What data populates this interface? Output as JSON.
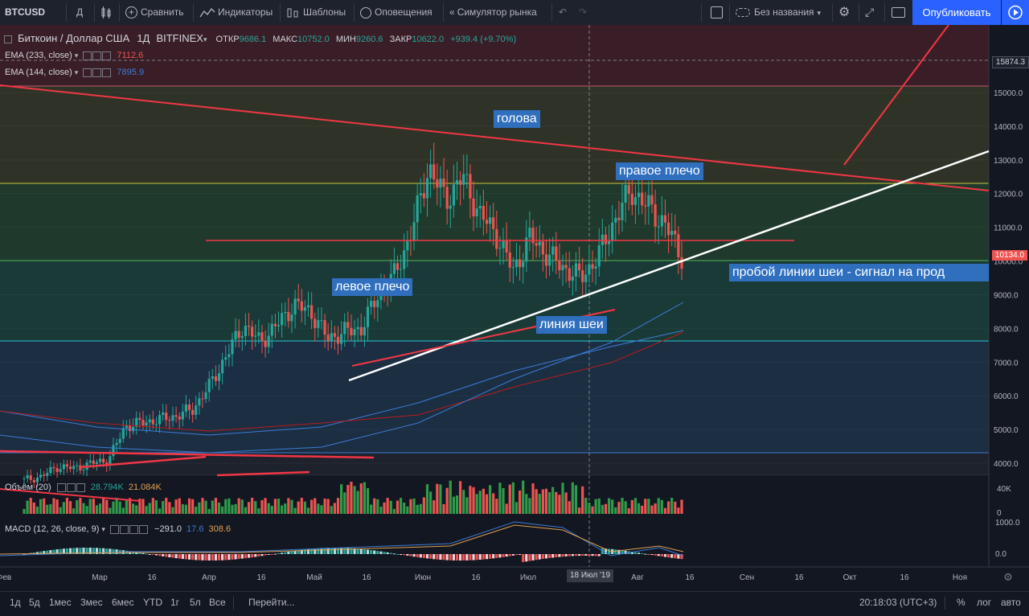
{
  "toolbar": {
    "symbol": "BTCUSD",
    "interval": "Д",
    "compare": "Сравнить",
    "indicators": "Индикаторы",
    "templates": "Шаблоны",
    "alerts": "Оповещения",
    "replay": "Симулятор рынка",
    "layout_name": "Без названия",
    "publish": "Опубликовать"
  },
  "legend": {
    "title": "Биткоин / Доллар США",
    "interval": "1Д",
    "exchange": "BITFINEX",
    "open_label": "ОТКР",
    "open": "9686.1",
    "high_label": "МАКС",
    "high": "10752.0",
    "low_label": "МИН",
    "low": "9260.6",
    "close_label": "ЗАКР",
    "close": "10622.0",
    "change": "+939.4 (+9.70%)",
    "ema1_label": "EMA (233, close)",
    "ema1_value": "7112.6",
    "ema2_label": "EMA (144, close)",
    "ema2_value": "7895.9",
    "volume_label": "Объём (20)",
    "volume_v1": "28.794K",
    "volume_v2": "21.084K",
    "macd_label": "MACD (12, 26, close, 9)",
    "macd_v1": "−291.0",
    "macd_v2": "17.6",
    "macd_v3": "308.6"
  },
  "price_axis": {
    "labels": [
      "15000.0",
      "14000.0",
      "13000.0",
      "12000.0",
      "11000.0",
      "10000.0",
      "9000.0",
      "8000.0",
      "7000.0",
      "6000.0",
      "5000.0",
      "4000.0"
    ],
    "top_tag": "15874.3",
    "last_tag": "10134.0",
    "volume_labels": [
      "40K",
      "0"
    ],
    "macd_labels": [
      "1000.0",
      "0.0"
    ]
  },
  "time_axis": {
    "labels": [
      "Фев",
      "Мар",
      "16",
      "Апр",
      "16",
      "Май",
      "16",
      "Июн",
      "16",
      "Июл",
      "Авг",
      "16",
      "Сен",
      "16",
      "Окт",
      "16",
      "Ноя"
    ],
    "crosshair_date": "18 Июл '19"
  },
  "annotations": {
    "head": "голова",
    "right_shoulder": "правое плечо",
    "left_shoulder": "левое плечо",
    "neckline": "линия шеи",
    "breakout": "пробой линии шеи - сигнал на прод"
  },
  "bottom": {
    "ranges": [
      "1д",
      "5д",
      "1мес",
      "3мес",
      "6мес",
      "YTD",
      "1г",
      "5л",
      "Все"
    ],
    "goto": "Перейти...",
    "time": "20:18:03 (UTC+3)",
    "percent": "%",
    "log": "лог",
    "auto": "авто"
  },
  "chart_data": {
    "type": "candlestick",
    "price_range": [
      3600,
      16200
    ],
    "closes_approx": [
      3500,
      3600,
      3900,
      3850,
      4000,
      4100,
      5100,
      5200,
      5300,
      5400,
      5600,
      6300,
      7200,
      8100,
      7600,
      8100,
      8700,
      8500,
      7700,
      7900,
      8000,
      9000,
      9600,
      10900,
      12800,
      11800,
      12500,
      11400,
      10800,
      9700,
      10700,
      10200,
      9800,
      9500,
      10100,
      11200,
      12100,
      11600,
      11100,
      10134
    ]
  },
  "colors": {
    "up": "#26a69a",
    "up_bar": "#2e9c4a",
    "down": "#ef5350",
    "accent": "#2962ff",
    "annotation_bg": "#2f6fbe"
  }
}
